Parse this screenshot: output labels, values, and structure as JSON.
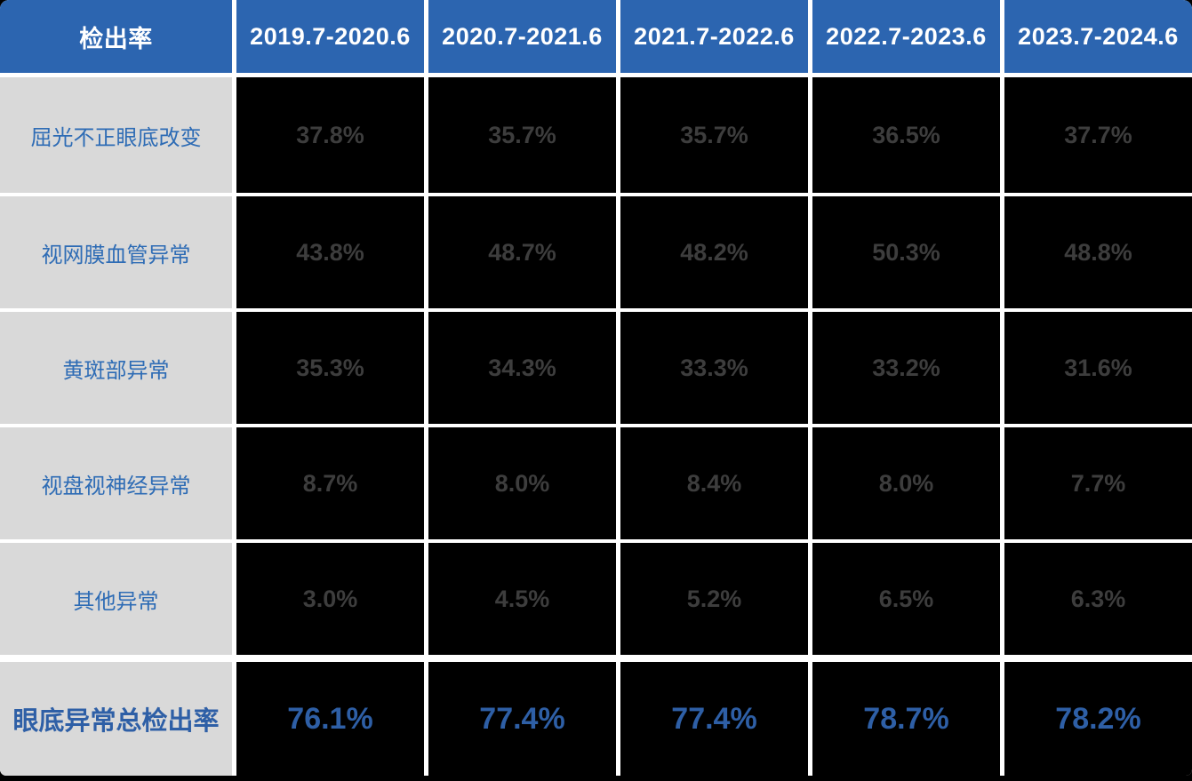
{
  "chart_data": {
    "type": "table",
    "title": "检出率表（按年度区间的眼底异常检出率）",
    "corner_header": "检出率",
    "columns": [
      "2019.7-2020.6",
      "2020.7-2021.6",
      "2021.7-2022.6",
      "2022.7-2023.6",
      "2023.7-2024.6"
    ],
    "rows": [
      {
        "label": "屈光不正眼底改变",
        "values": [
          "37.8%",
          "35.7%",
          "35.7%",
          "36.5%",
          "37.7%"
        ]
      },
      {
        "label": "视网膜血管异常",
        "values": [
          "43.8%",
          "48.7%",
          "48.2%",
          "50.3%",
          "48.8%"
        ]
      },
      {
        "label": "黄斑部异常",
        "values": [
          "35.3%",
          "34.3%",
          "33.3%",
          "33.2%",
          "31.6%"
        ]
      },
      {
        "label": "视盘视神经异常",
        "values": [
          "8.7%",
          "8.0%",
          "8.4%",
          "8.0%",
          "7.7%"
        ]
      },
      {
        "label": "其他异常",
        "values": [
          "3.0%",
          "4.5%",
          "5.2%",
          "6.5%",
          "6.3%"
        ]
      }
    ],
    "total_row": {
      "label": "眼底异常总检出率",
      "values": [
        "76.1%",
        "77.4%",
        "77.4%",
        "78.7%",
        "78.2%"
      ]
    },
    "colors": {
      "header_bg": "#2c65b0",
      "header_text": "#ffffff",
      "label_column_bg": "#d9d9d9",
      "label_text": "#2e6cb5",
      "data_cell_bg": "#000000",
      "value_text": "#3d3d3d",
      "total_text": "#2e5fa6",
      "gridline": "#ffffff",
      "page_bg": "#000000"
    },
    "layout": {
      "grid": "on",
      "legend": "none"
    }
  }
}
